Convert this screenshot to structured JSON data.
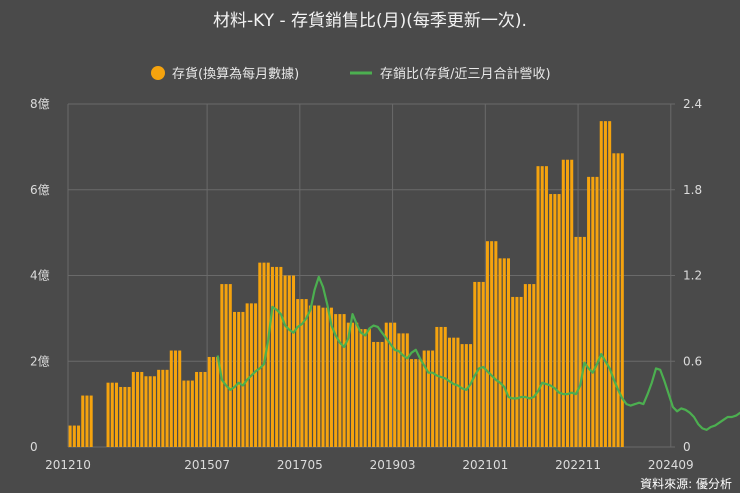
{
  "chart_data": {
    "type": "bar+line",
    "title": "材料-KY - 存貨銷售比(月)(每季更新一次).",
    "source": "資料來源: 優分析",
    "colors": {
      "background": "#4a4a4a",
      "bar": "#f5a30e",
      "line": "#4caf50",
      "grid": "#6a6a6a"
    },
    "legend": [
      {
        "name": "存貨(換算為每月數據)",
        "marker": "circle",
        "color": "#f5a30e"
      },
      {
        "name": "存銷比(存貨/近三月合計營收)",
        "marker": "line",
        "color": "#4caf50"
      }
    ],
    "x_ticks": [
      "201210",
      "201507",
      "201705",
      "201903",
      "202101",
      "202211",
      "202409"
    ],
    "y_left": {
      "min": 0,
      "max": 8,
      "ticks": [
        "0",
        "2億",
        "4億",
        "6億",
        "8億"
      ],
      "tick_values": [
        0,
        2,
        4,
        6,
        8
      ]
    },
    "y_right": {
      "min": 0,
      "max": 2.4,
      "ticks": [
        "0",
        "0.6",
        "1.2",
        "1.8",
        "2.4"
      ],
      "tick_values": [
        0,
        0.6,
        1.2,
        1.8,
        2.4
      ]
    },
    "start_month": "2012-10",
    "bars_quarterly": [
      0.5,
      1.2,
      null,
      1.5,
      1.4,
      1.75,
      1.65,
      1.8,
      2.25,
      1.55,
      1.75,
      2.1,
      3.8,
      3.15,
      3.35,
      4.3,
      4.2,
      4.0,
      3.45,
      3.3,
      3.25,
      3.1,
      2.9,
      2.75,
      2.45,
      2.9,
      2.65,
      2.05,
      2.25,
      2.8,
      2.55,
      2.4,
      3.85,
      4.8,
      4.4,
      3.5,
      3.8,
      6.55,
      5.9,
      6.7,
      4.9,
      6.3,
      7.6,
      6.85
    ],
    "line_monthly_from": "2015-09",
    "line_monthly": [
      0.64,
      0.47,
      0.43,
      0.4,
      0.42,
      0.45,
      0.43,
      0.47,
      0.5,
      0.53,
      0.55,
      0.58,
      0.75,
      0.98,
      0.96,
      0.93,
      0.85,
      0.82,
      0.8,
      0.84,
      0.86,
      0.9,
      0.96,
      1.1,
      1.19,
      1.12,
      1.0,
      0.85,
      0.78,
      0.73,
      0.7,
      0.76,
      0.93,
      0.86,
      0.8,
      0.78,
      0.83,
      0.85,
      0.84,
      0.8,
      0.76,
      0.72,
      0.68,
      0.67,
      0.64,
      0.62,
      0.66,
      0.68,
      0.62,
      0.57,
      0.52,
      0.52,
      0.5,
      0.49,
      0.48,
      0.46,
      0.44,
      0.43,
      0.41,
      0.4,
      0.44,
      0.5,
      0.55,
      0.56,
      0.53,
      0.5,
      0.47,
      0.45,
      0.42,
      0.35,
      0.34,
      0.34,
      0.35,
      0.35,
      0.34,
      0.35,
      0.39,
      0.45,
      0.44,
      0.43,
      0.41,
      0.38,
      0.37,
      0.37,
      0.38,
      0.37,
      0.43,
      0.59,
      0.55,
      0.52,
      0.58,
      0.65,
      0.6,
      0.55,
      0.47,
      0.4,
      0.34,
      0.3,
      0.29,
      0.3,
      0.31,
      0.3,
      0.37,
      0.45,
      0.55,
      0.54,
      0.46,
      0.37,
      0.28,
      0.25,
      0.27,
      0.26,
      0.24,
      0.21,
      0.16,
      0.13,
      0.12,
      0.14,
      0.15,
      0.17,
      0.19,
      0.21,
      0.21,
      0.22,
      0.24,
      0.2,
      0.17
    ]
  }
}
